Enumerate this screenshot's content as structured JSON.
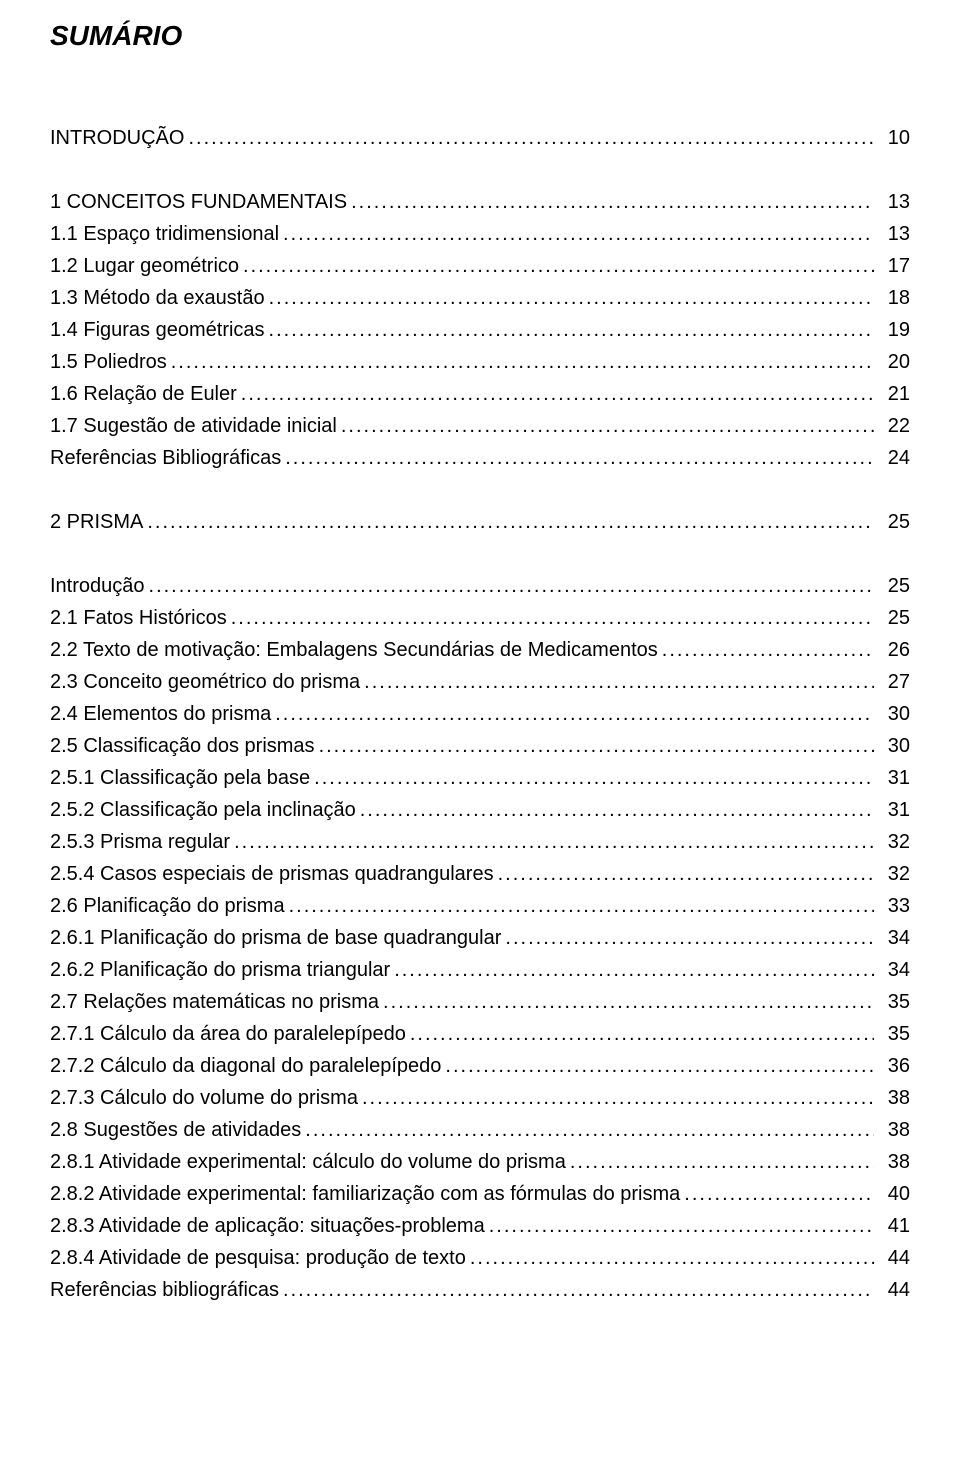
{
  "title": "SUMÁRIO",
  "toc": [
    {
      "label": "INTRODUÇÃO",
      "page": "10",
      "spaced": false
    },
    {
      "label": "1 CONCEITOS FUNDAMENTAIS",
      "page": "13",
      "spaced": true
    },
    {
      "label": "1.1 Espaço tridimensional",
      "page": "13",
      "spaced": false
    },
    {
      "label": "1.2 Lugar geométrico",
      "page": "17",
      "spaced": false
    },
    {
      "label": "1.3 Método da exaustão",
      "page": "18",
      "spaced": false
    },
    {
      "label": "1.4 Figuras geométricas",
      "page": "19",
      "spaced": false
    },
    {
      "label": "1.5 Poliedros",
      "page": "20",
      "spaced": false
    },
    {
      "label": "1.6 Relação de Euler",
      "page": "21",
      "spaced": false
    },
    {
      "label": "1.7 Sugestão de atividade inicial",
      "page": "22",
      "spaced": false
    },
    {
      "label": "Referências Bibliográficas",
      "page": "24",
      "spaced": false
    },
    {
      "label": "2 PRISMA",
      "page": "25",
      "spaced": true
    },
    {
      "label": "Introdução",
      "page": "25",
      "spaced": true
    },
    {
      "label": "2.1 Fatos Históricos",
      "page": "25",
      "spaced": false
    },
    {
      "label": "2.2 Texto de motivação: Embalagens Secundárias de Medicamentos",
      "page": "26",
      "spaced": false
    },
    {
      "label": "2.3 Conceito geométrico do prisma",
      "page": "27",
      "spaced": false
    },
    {
      "label": "2.4 Elementos do prisma",
      "page": "30",
      "spaced": false
    },
    {
      "label": "2.5 Classificação dos prismas",
      "page": "30",
      "spaced": false
    },
    {
      "label": "2.5.1 Classificação pela base",
      "page": "31",
      "spaced": false
    },
    {
      "label": "2.5.2 Classificação pela inclinação",
      "page": "31",
      "spaced": false
    },
    {
      "label": "2.5.3 Prisma regular",
      "page": "32",
      "spaced": false
    },
    {
      "label": "2.5.4 Casos especiais de prismas quadrangulares",
      "page": "32",
      "spaced": false
    },
    {
      "label": "2.6 Planificação do prisma",
      "page": "33",
      "spaced": false
    },
    {
      "label": "2.6.1 Planificação do prisma de base quadrangular",
      "page": "34",
      "spaced": false
    },
    {
      "label": "2.6.2 Planificação do prisma triangular",
      "page": "34",
      "spaced": false
    },
    {
      "label": "2.7 Relações matemáticas no prisma",
      "page": "35",
      "spaced": false
    },
    {
      "label": "2.7.1 Cálculo da área do paralelepípedo",
      "page": "35",
      "spaced": false
    },
    {
      "label": "2.7.2 Cálculo da diagonal do paralelepípedo",
      "page": "36",
      "spaced": false
    },
    {
      "label": "2.7.3 Cálculo do volume do prisma",
      "page": "38",
      "spaced": false
    },
    {
      "label": "2.8 Sugestões de atividades",
      "page": "38",
      "spaced": false
    },
    {
      "label": "2.8.1 Atividade experimental: cálculo do volume do prisma",
      "page": "38",
      "spaced": false
    },
    {
      "label": "2.8.2 Atividade experimental: familiarização com as fórmulas do prisma",
      "page": "40",
      "spaced": false
    },
    {
      "label": "2.8.3 Atividade de aplicação: situações-problema",
      "page": "41",
      "spaced": false
    },
    {
      "label": "2.8.4 Atividade de pesquisa: produção de texto",
      "page": "44",
      "spaced": false
    },
    {
      "label": "Referências bibliográficas",
      "page": "44",
      "spaced": false
    }
  ]
}
